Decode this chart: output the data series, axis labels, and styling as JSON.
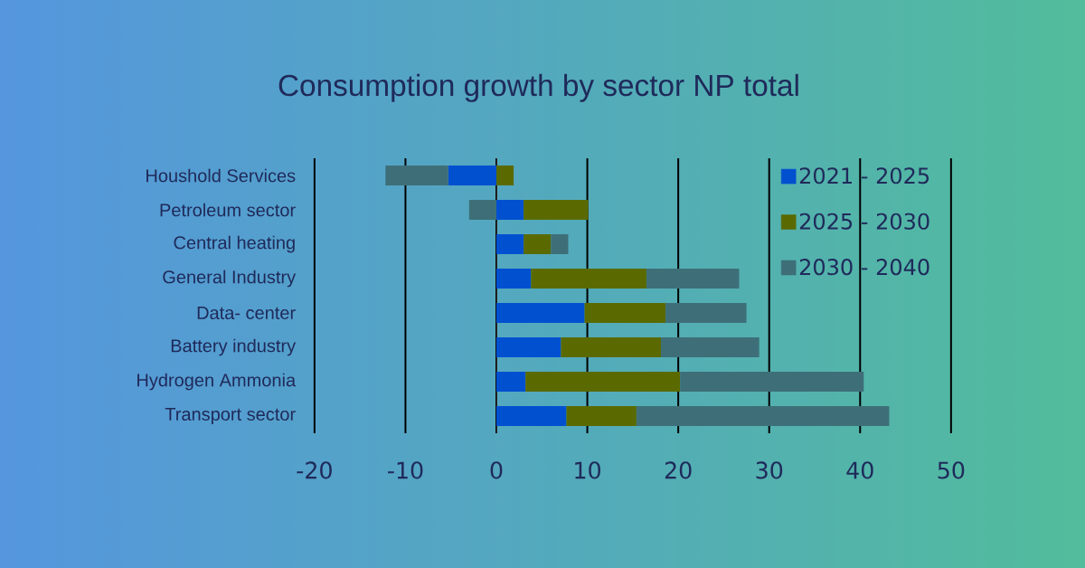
{
  "chart_data": {
    "type": "bar",
    "title": "Consumption growth by sector NP total",
    "orientation": "horizontal",
    "stacked": true,
    "categories": [
      "Houshold Services",
      "Petroleum  sector",
      "Central heating",
      "General Industry",
      "Data- center",
      "Battery industry",
      "Hydrogen Ammonia",
      "Transport sector"
    ],
    "series": [
      {
        "name": "2021 - 2025",
        "color": "#0050d0",
        "values": [
          -5.3,
          3.0,
          3.0,
          3.8,
          9.7,
          7.1,
          3.2,
          7.7
        ]
      },
      {
        "name": "2025 - 2030",
        "color": "#5a6a00",
        "values": [
          1.9,
          7.1,
          3.0,
          12.7,
          8.9,
          11.0,
          17.0,
          7.7
        ]
      },
      {
        "name": "2030 - 2040",
        "color": "#3e6f78",
        "values": [
          -6.9,
          -3.0,
          1.9,
          10.2,
          8.9,
          10.8,
          20.2,
          27.8
        ]
      }
    ],
    "xlim": [
      -20,
      50
    ],
    "xticks": [
      -20,
      -10,
      0,
      10,
      20,
      30,
      40,
      50
    ],
    "grid": "x",
    "legend": "top right"
  }
}
